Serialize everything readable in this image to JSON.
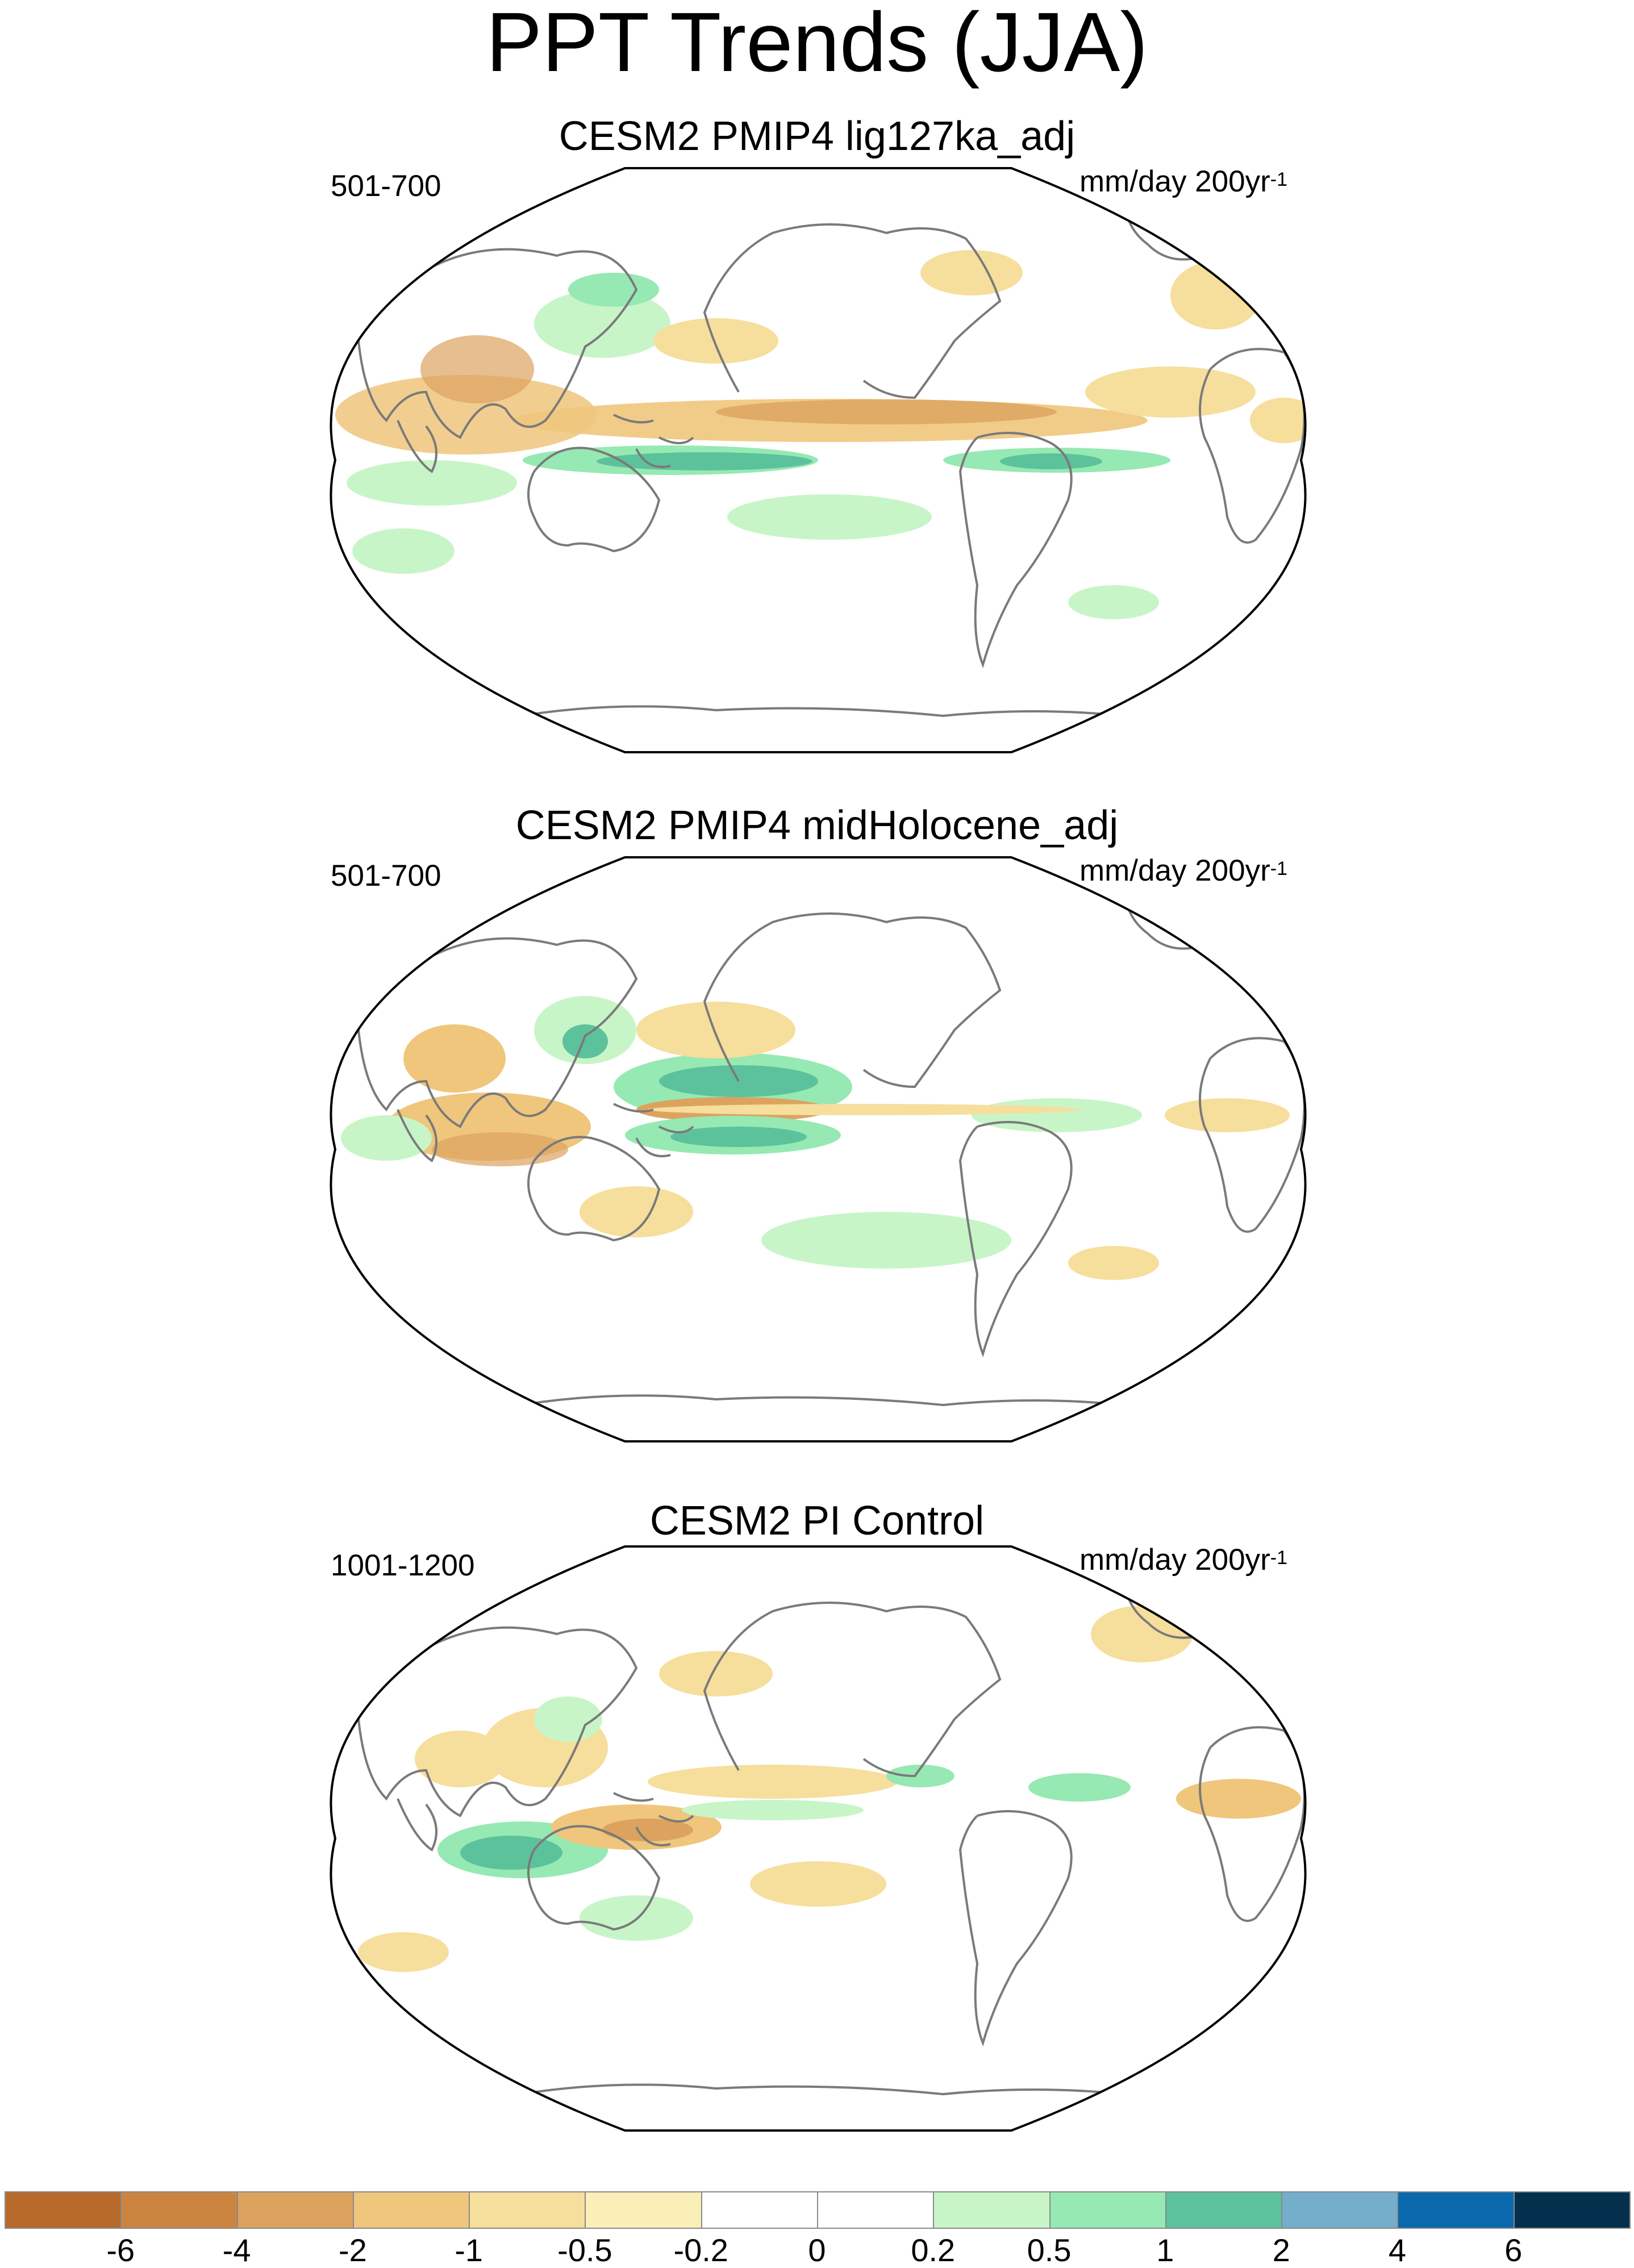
{
  "title": "PPT Trends (JJA)",
  "units": {
    "text": "mm/day 200yr",
    "exponent": "-1"
  },
  "panels": [
    {
      "title": "CESM2 PMIP4 lig127ka_adj",
      "period": "501-700"
    },
    {
      "title": "CESM2 PMIP4 midHolocene_adj",
      "period": "501-700"
    },
    {
      "title": "CESM2 PI Control",
      "period": "1001-1200"
    }
  ],
  "colorbar": {
    "colors": [
      "#b86a2b",
      "#cc8540",
      "#dca35f",
      "#efc67c",
      "#f6de9c",
      "#fbefb8",
      "#ffffff",
      "#ffffff",
      "#c8f5c8",
      "#96e9b2",
      "#5cc29c",
      "#74aecb",
      "#0a69ac",
      "#04304e"
    ],
    "labels": [
      "-6",
      "-4",
      "-2",
      "-1",
      "-0.5",
      "-0.2",
      "0",
      "0.2",
      "0.5",
      "1",
      "2",
      "4",
      "6"
    ]
  },
  "colors": {
    "coast": "#7a7a7a",
    "outline": "#000000",
    "green": "#c8f5c8",
    "green_mid": "#96e9b2",
    "teal": "#5cc29c",
    "tan": "#f6de9c",
    "orange": "#efc67c",
    "brown": "#dca35f"
  }
}
